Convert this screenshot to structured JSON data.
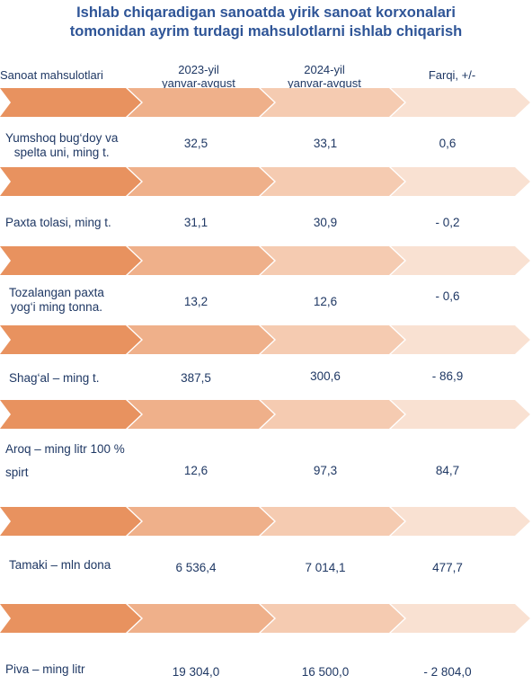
{
  "title": {
    "line1": "Ishlab chiqaradigan sanoatda yirik sanoat korxonalari",
    "line2": "tomonidan ayrim turdagi mahsulotlarni ishlab chiqarish"
  },
  "headers": {
    "product": "Sanoat mahsulotlari",
    "y2023_line1": "2023-yil",
    "y2023_line2": "yanvar-avgust",
    "y2024_line1": "2024-yil",
    "y2024_line2": "yanvar-avgust",
    "diff": "Farqi,  +/-"
  },
  "colors": {
    "title": "#2f5597",
    "text": "#1f3864",
    "arrow1": "#e8925f",
    "arrow2": "#efb08a",
    "arrow3": "#f5cbb1",
    "arrow4": "#f9e1d2"
  },
  "rows": [
    {
      "label_line1": "Yumshoq bug‘doy va",
      "label_line2": "spelta uni, ming t.",
      "v2023": "32,5",
      "v2024": "33,1",
      "diff": "0,6"
    },
    {
      "label_line1": "Paxta tolasi, ming t.",
      "label_line2": "",
      "v2023": "31,1",
      "v2024": "30,9",
      "diff": "- 0,2"
    },
    {
      "label_line1": "Tozalangan paxta",
      "label_line2": "yog‘i ming tonna.",
      "v2023": "13,2",
      "v2024": "12,6",
      "diff": "- 0,6"
    },
    {
      "label_line1": "Shag‘al – ming t.",
      "label_line2": "",
      "v2023": "387,5",
      "v2024": "300,6",
      "diff": "- 86,9"
    },
    {
      "label_line1": "Aroq – ming litr  100 %",
      "label_line2": "spirt",
      "v2023": "12,6",
      "v2024": "97,3",
      "diff": "84,7"
    },
    {
      "label_line1": "Tamaki – mln dona",
      "label_line2": "",
      "v2023": "6 536,4",
      "v2024": "7 014,1",
      "diff": "477,7"
    },
    {
      "label_line1": "Piva – ming litr",
      "label_line2": "",
      "v2023": "19 304,0",
      "v2024": "16 500,0",
      "diff": "- 2 804,0"
    }
  ]
}
